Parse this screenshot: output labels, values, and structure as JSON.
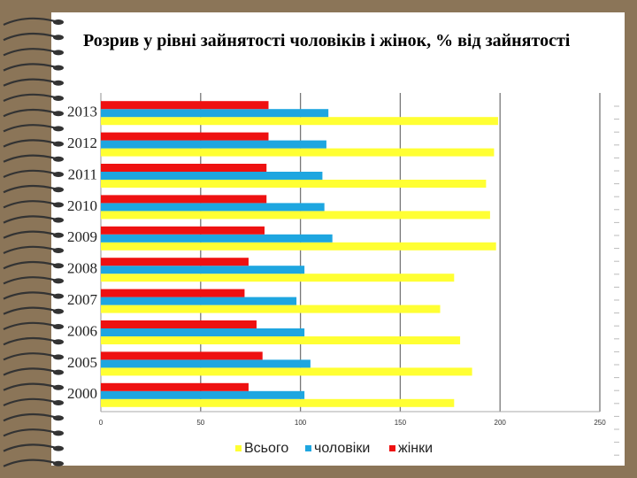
{
  "chart_data": {
    "type": "hbar",
    "title": "Розрив у рівні зайнятості чоловіків і жінок, % від зайнятості",
    "categories": [
      "2013",
      "2012",
      "2011",
      "2010",
      "2009",
      "2008",
      "2007",
      "2006",
      "2005",
      "2000"
    ],
    "series": [
      {
        "name": "Всього",
        "color": "#ffff33",
        "values": [
          199,
          197,
          193,
          195,
          198,
          177,
          170,
          180,
          186,
          177
        ]
      },
      {
        "name": "чоловіки",
        "color": "#1ea6e0",
        "values": [
          114,
          113,
          111,
          112,
          116,
          102,
          98,
          102,
          105,
          102
        ]
      },
      {
        "name": "жінки",
        "color": "#ee1111",
        "values": [
          84,
          84,
          83,
          83,
          82,
          74,
          72,
          78,
          81,
          74
        ]
      }
    ],
    "xlim": [
      0,
      250
    ],
    "xticks": [
      0,
      50,
      100,
      150,
      200,
      250
    ],
    "grid": true,
    "legend": "bottom"
  }
}
